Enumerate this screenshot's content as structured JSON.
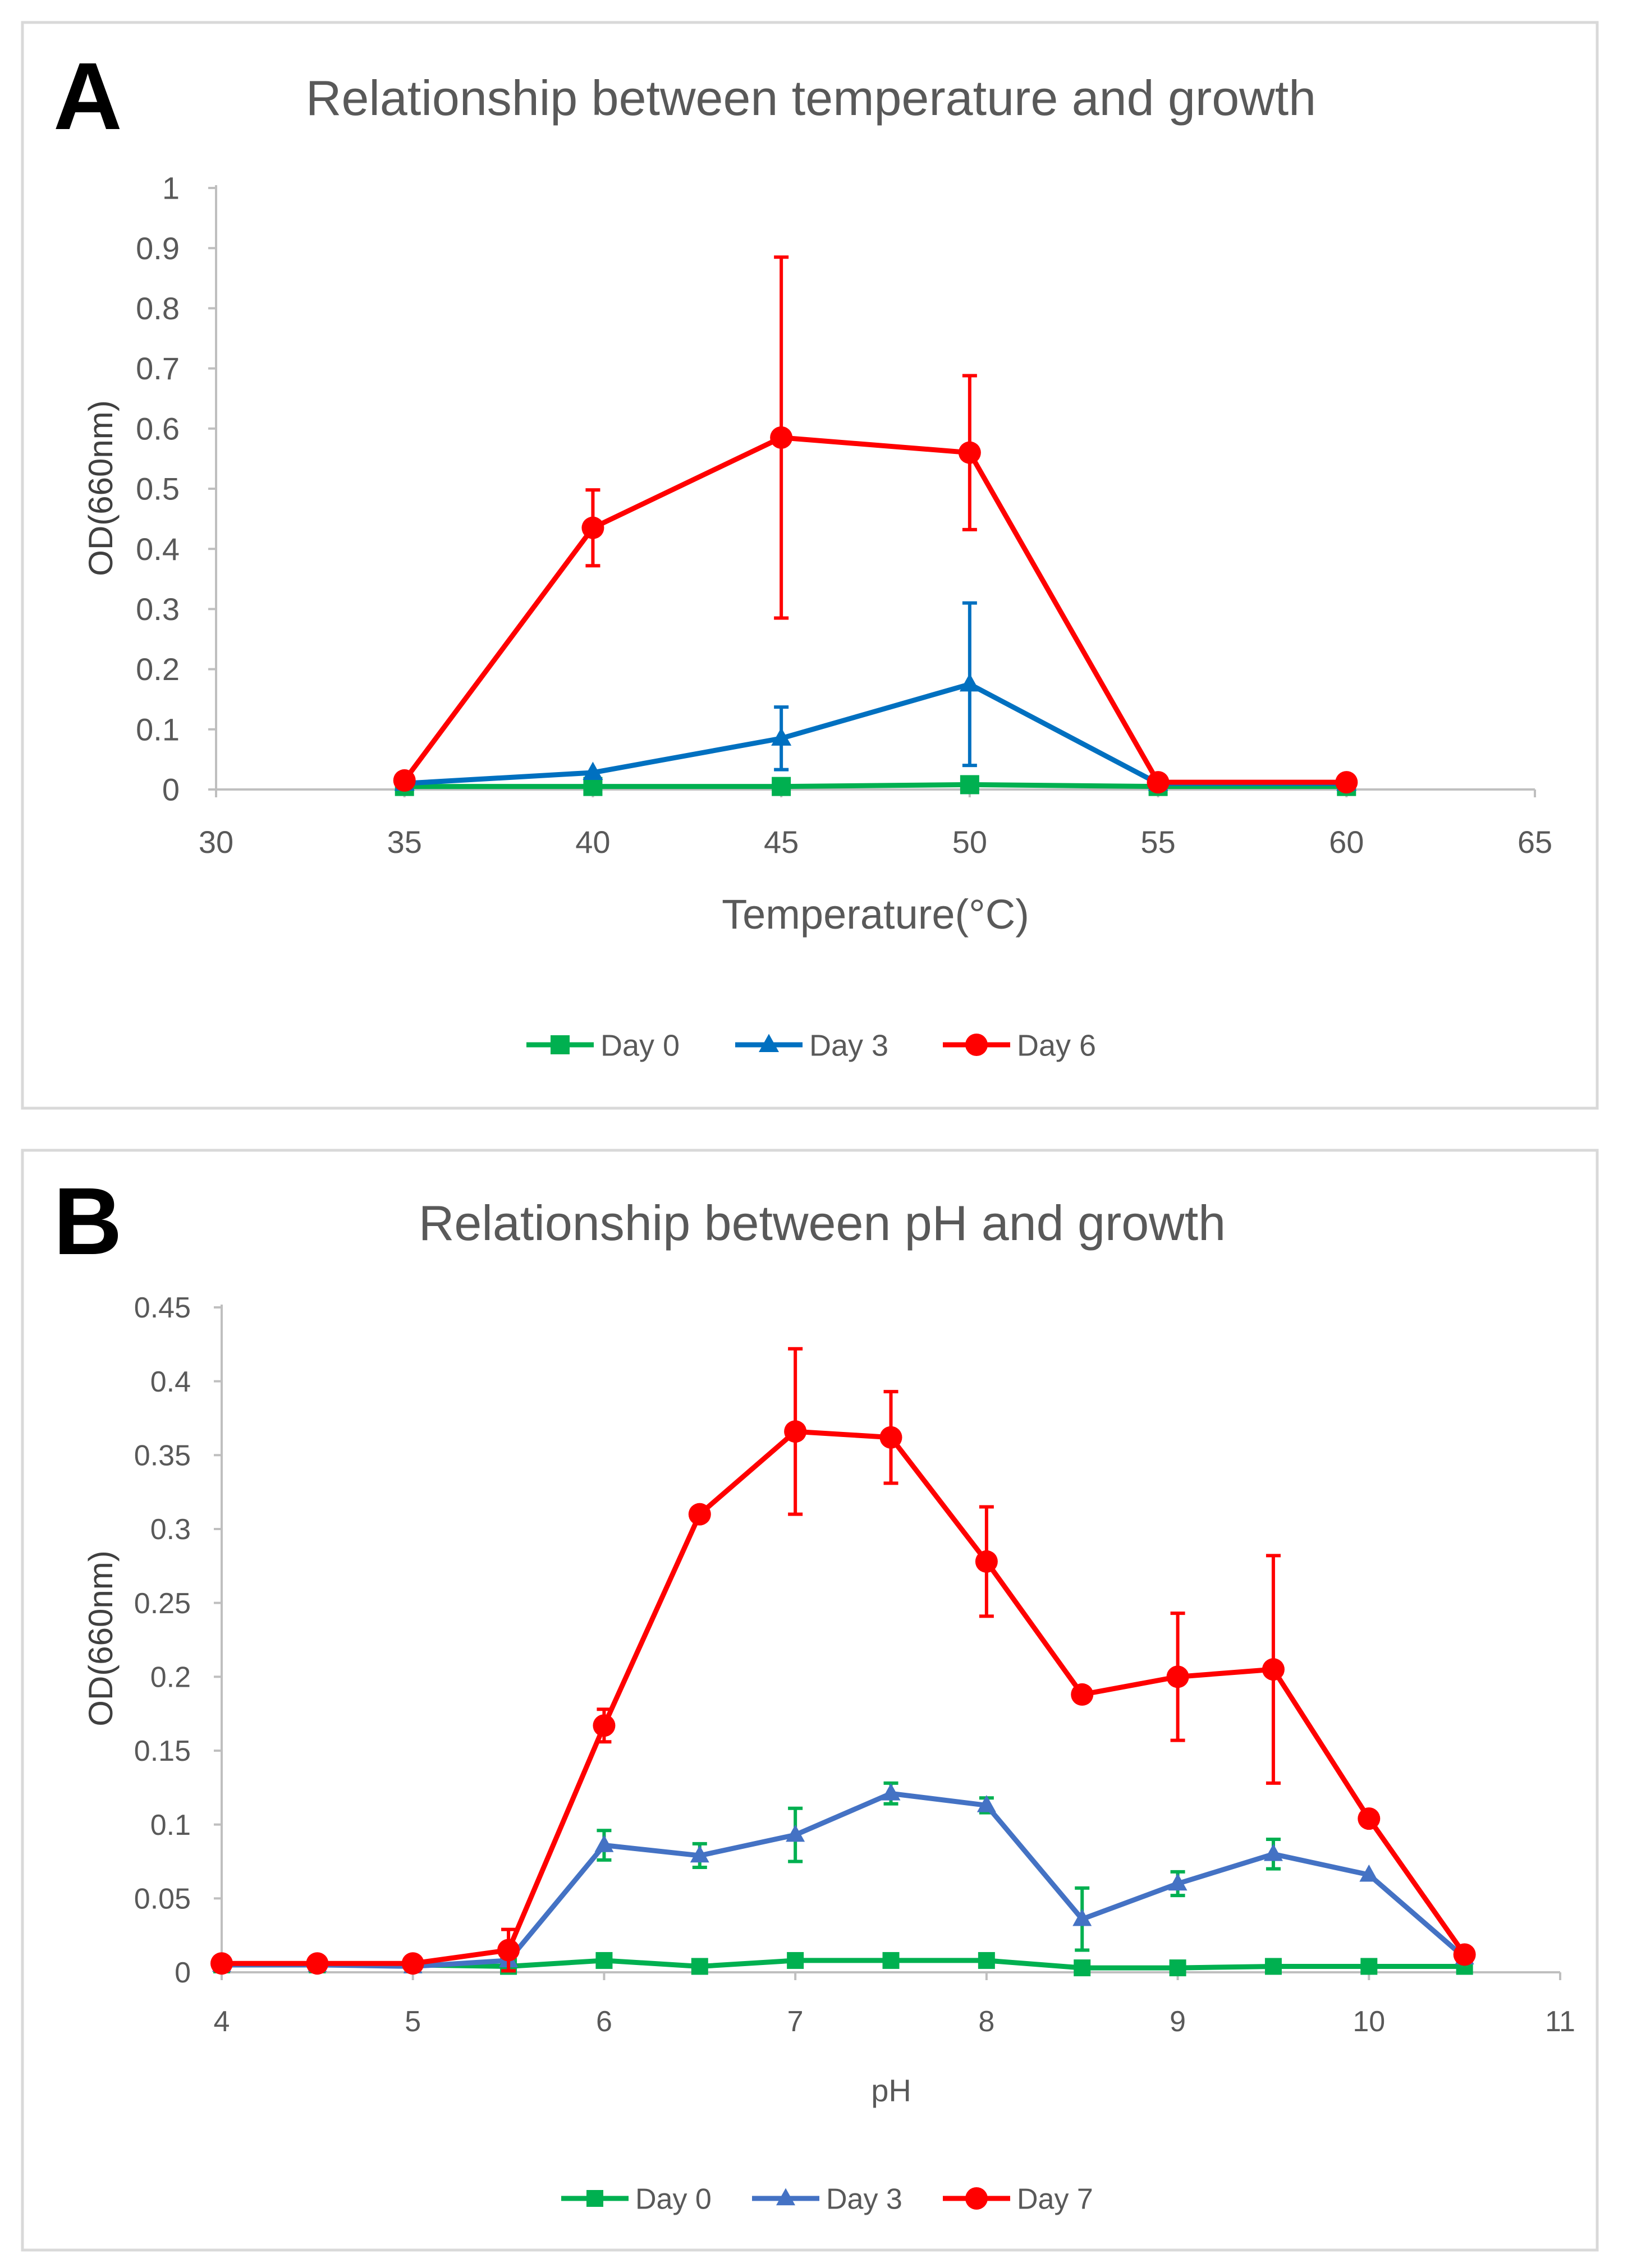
{
  "colors": {
    "day0": "#00B050",
    "day3": "#0070C0",
    "day3_pH": "#4472C4",
    "day6": "#FF0000",
    "axis": "#BFBFBF",
    "text": "#595959",
    "frame": "#D9D9D9"
  },
  "chart_data": [
    {
      "panel": "A",
      "type": "line",
      "title": "Relationship between temperature and growth",
      "xlabel": "Temperature(°C)",
      "ylabel": "OD(660nm)",
      "xlim": [
        30,
        65
      ],
      "ylim": [
        0,
        1
      ],
      "xticks": [
        30,
        35,
        40,
        45,
        50,
        55,
        60,
        65
      ],
      "yticks": [
        0,
        0.1,
        0.2,
        0.3,
        0.4,
        0.5,
        0.6,
        0.7,
        0.8,
        0.9,
        1
      ],
      "ytick_labels": [
        "0",
        "0.1",
        "0.2",
        "0.3",
        "0.4",
        "0.5",
        "0.6",
        "0.7",
        "0.8",
        "0.9",
        "1"
      ],
      "legend": "bottom",
      "series": [
        {
          "name": "Day 0",
          "marker": "square",
          "color_key": "day0",
          "x": [
            35,
            40,
            45,
            50,
            55,
            60
          ],
          "y": [
            0.005,
            0.005,
            0.005,
            0.008,
            0.005,
            0.005
          ],
          "err": [
            0,
            0,
            0,
            0,
            0,
            0
          ]
        },
        {
          "name": "Day 3",
          "marker": "triangle",
          "color_key": "day3",
          "x": [
            35,
            40,
            45,
            50,
            55,
            60
          ],
          "y": [
            0.01,
            0.028,
            0.085,
            0.175,
            0.01,
            0.01
          ],
          "err": [
            0,
            0,
            0.052,
            0.135,
            0,
            0
          ]
        },
        {
          "name": "Day 6",
          "marker": "circle",
          "color_key": "day6",
          "x": [
            35,
            40,
            45,
            50,
            55,
            60
          ],
          "y": [
            0.015,
            0.435,
            0.585,
            0.56,
            0.012,
            0.012
          ],
          "err": [
            0,
            0.063,
            0.3,
            0.128,
            0,
            0
          ]
        }
      ]
    },
    {
      "panel": "B",
      "type": "line",
      "title": "Relationship between pH and growth",
      "xlabel": "pH",
      "ylabel": "OD(660nm)",
      "xlim": [
        4,
        11
      ],
      "ylim": [
        0,
        0.45
      ],
      "xticks": [
        4,
        5,
        6,
        7,
        8,
        9,
        10,
        11
      ],
      "yticks": [
        0,
        0.05,
        0.1,
        0.15,
        0.2,
        0.25,
        0.3,
        0.35,
        0.4,
        0.45
      ],
      "ytick_labels": [
        "0",
        "0.05",
        "0.1",
        "0.15",
        "0.2",
        "0.25",
        "0.3",
        "0.35",
        "0.4",
        "0.45"
      ],
      "legend": "bottom",
      "series": [
        {
          "name": "Day 0",
          "marker": "square",
          "color_key": "day0",
          "x": [
            4,
            4.5,
            5,
            5.5,
            6,
            6.5,
            7,
            7.5,
            8,
            8.5,
            9,
            9.5,
            10,
            10.5
          ],
          "y": [
            0.005,
            0.005,
            0.005,
            0.004,
            0.008,
            0.004,
            0.008,
            0.008,
            0.008,
            0.003,
            0.003,
            0.004,
            0.004,
            0.004
          ],
          "err": [
            0,
            0,
            0,
            0,
            0,
            0,
            0,
            0,
            0,
            0,
            0,
            0,
            0,
            0
          ]
        },
        {
          "name": "Day 3",
          "marker": "triangle",
          "color_key": "day3_pH",
          "err_color_key": "day0",
          "x": [
            4,
            4.5,
            5,
            5.5,
            6,
            6.5,
            7,
            7.5,
            8,
            8.5,
            9,
            9.5,
            10,
            10.5
          ],
          "y": [
            0.005,
            0.005,
            0.004,
            0.008,
            0.086,
            0.079,
            0.093,
            0.121,
            0.113,
            0.036,
            0.06,
            0.08,
            0.066,
            0.01
          ],
          "err": [
            0,
            0,
            0,
            0,
            0.01,
            0.008,
            0.018,
            0.007,
            0.005,
            0.021,
            0.008,
            0.01,
            0,
            0
          ]
        },
        {
          "name": "Day 7",
          "marker": "circle",
          "color_key": "day6",
          "x": [
            4,
            4.5,
            5,
            5.5,
            6,
            6.5,
            7,
            7.5,
            8,
            8.5,
            9,
            9.5,
            10,
            10.5
          ],
          "y": [
            0.006,
            0.006,
            0.006,
            0.015,
            0.167,
            0.31,
            0.366,
            0.362,
            0.278,
            0.188,
            0.2,
            0.205,
            0.104,
            0.012
          ],
          "err": [
            0,
            0,
            0,
            0.014,
            0.011,
            0,
            0.056,
            0.031,
            0.037,
            0,
            0.043,
            0.077,
            0,
            0
          ]
        }
      ]
    }
  ]
}
